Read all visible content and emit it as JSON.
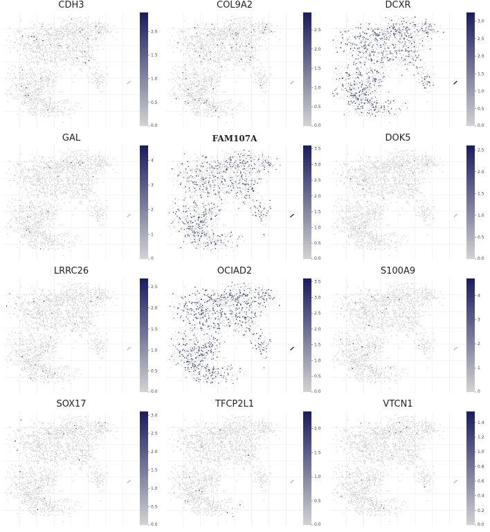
{
  "colormap": {
    "low": "#d3d3d3",
    "high": "#191c5e",
    "grid_color": "#ececec"
  },
  "chart_data": [
    {
      "type": "scatter",
      "title": "CDH3",
      "bold": false,
      "density": 0.015,
      "colorbar_max": 2.4,
      "colorbar_ticks": [
        0.0,
        0.5,
        1.0,
        1.5,
        2.0
      ]
    },
    {
      "type": "scatter",
      "title": "COL9A2",
      "bold": false,
      "density": 0.05,
      "colorbar_max": 2.95,
      "colorbar_ticks": [
        0.0,
        0.5,
        1.0,
        1.5,
        2.0,
        2.5
      ]
    },
    {
      "type": "scatter",
      "title": "DCXR",
      "bold": false,
      "density": 0.4,
      "colorbar_max": 3.25,
      "colorbar_ticks": [
        0.0,
        0.5,
        1.0,
        1.5,
        2.0,
        2.5,
        3.0
      ]
    },
    {
      "type": "scatter",
      "title": "GAL",
      "bold": false,
      "density": 0.01,
      "colorbar_max": 4.6,
      "colorbar_ticks": [
        0,
        1,
        2,
        3,
        4
      ]
    },
    {
      "type": "scatter",
      "title": "FAM107A",
      "bold": true,
      "density": 0.32,
      "colorbar_max": 3.6,
      "colorbar_ticks": [
        0.0,
        0.5,
        1.0,
        1.5,
        2.0,
        2.5,
        3.0,
        3.5
      ]
    },
    {
      "type": "scatter",
      "title": "DOK5",
      "bold": false,
      "density": 0.012,
      "colorbar_max": 2.6,
      "colorbar_ticks": [
        0.0,
        0.5,
        1.0,
        1.5,
        2.0,
        2.5
      ]
    },
    {
      "type": "scatter",
      "title": "LRRC26",
      "bold": false,
      "density": 0.01,
      "colorbar_max": 2.7,
      "colorbar_ticks": [
        0.0,
        0.5,
        1.0,
        1.5,
        2.0,
        2.5
      ]
    },
    {
      "type": "scatter",
      "title": "OCIAD2",
      "bold": false,
      "density": 0.45,
      "colorbar_max": 3.6,
      "colorbar_ticks": [
        0.0,
        0.5,
        1.0,
        1.5,
        2.0,
        2.5,
        3.0,
        3.5
      ]
    },
    {
      "type": "scatter",
      "title": "S100A9",
      "bold": false,
      "density": 0.01,
      "colorbar_max": 4.7,
      "colorbar_ticks": [
        0,
        1,
        2,
        3,
        4
      ]
    },
    {
      "type": "scatter",
      "title": "SOX17",
      "bold": false,
      "density": 0.008,
      "colorbar_max": 3.1,
      "colorbar_ticks": [
        0.0,
        0.5,
        1.0,
        1.5,
        2.0,
        2.5,
        3.0
      ]
    },
    {
      "type": "scatter",
      "title": "TFCP2L1",
      "bold": false,
      "density": 0.008,
      "colorbar_max": 2.35,
      "colorbar_ticks": [
        0.0,
        0.5,
        1.0,
        1.5,
        2.0
      ]
    },
    {
      "type": "scatter",
      "title": "VTCN1",
      "bold": false,
      "density": 0.008,
      "colorbar_max": 1.55,
      "colorbar_ticks": [
        0.0,
        0.2,
        0.4,
        0.6,
        0.8,
        1.0,
        1.2,
        1.4
      ]
    }
  ]
}
